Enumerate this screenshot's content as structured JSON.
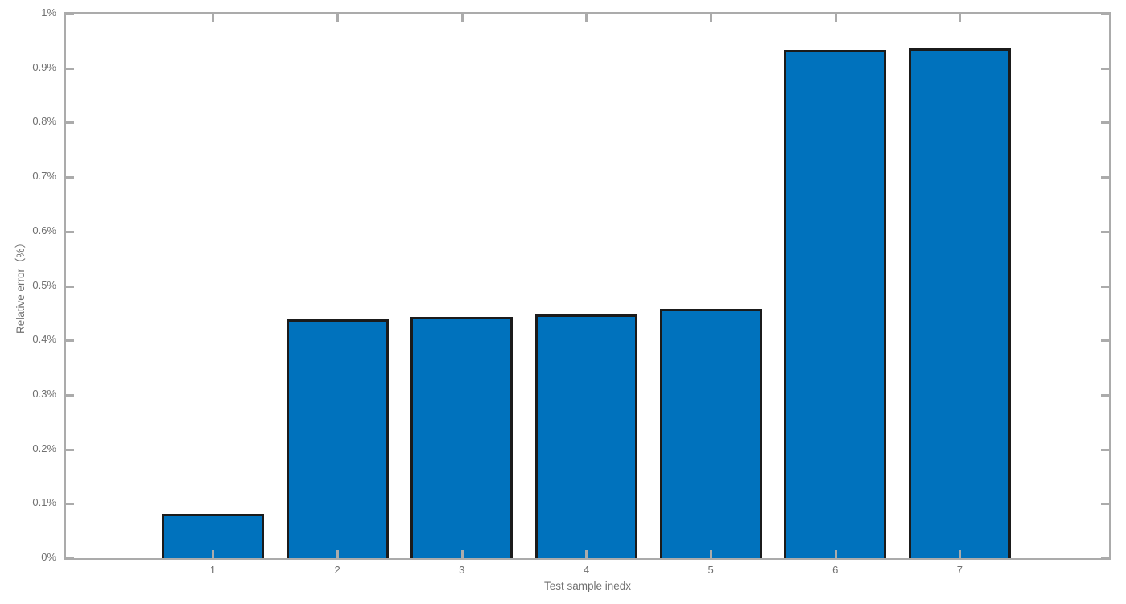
{
  "figure": {
    "background": "#ffffff"
  },
  "chart_data": {
    "type": "bar",
    "title": "",
    "xlabel": "Test sample inedx",
    "ylabel": "Relative error（%）",
    "categories": [
      "1",
      "2",
      "3",
      "4",
      "5",
      "6",
      "7"
    ],
    "values": [
      0.081,
      0.438,
      0.443,
      0.448,
      0.458,
      0.934,
      0.936
    ],
    "value_unit": "%",
    "ylim": [
      0,
      1
    ],
    "xlim": [
      -0.18,
      8.2
    ],
    "y_ticks": [
      {
        "value": 0.0,
        "label": "0%"
      },
      {
        "value": 0.1,
        "label": "0.1%"
      },
      {
        "value": 0.2,
        "label": "0.2%"
      },
      {
        "value": 0.3,
        "label": "0.3%"
      },
      {
        "value": 0.4,
        "label": "0.4%"
      },
      {
        "value": 0.5,
        "label": "0.5%"
      },
      {
        "value": 0.6,
        "label": "0.6%"
      },
      {
        "value": 0.7,
        "label": "0.7%"
      },
      {
        "value": 0.8,
        "label": "0.8%"
      },
      {
        "value": 0.9,
        "label": "0.9%"
      },
      {
        "value": 1.0,
        "label": "1%"
      }
    ],
    "grid": false,
    "legend": null,
    "box": true,
    "tick_direction": "in",
    "bar_width_ratio": 0.82,
    "colors": {
      "bar_fill": "#0072BD",
      "bar_edge": "#1b1b1b",
      "axis_line": "#ababab",
      "tick_text": "#707070"
    }
  }
}
